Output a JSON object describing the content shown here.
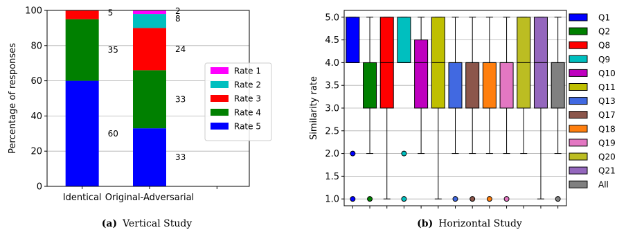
{
  "chart_data": [
    {
      "type": "bar",
      "stacked": true,
      "categories": [
        "Identical",
        "Original-Adversarial"
      ],
      "series": [
        {
          "name": "Rate 5",
          "color": "#0000ff",
          "values": [
            60,
            33
          ]
        },
        {
          "name": "Rate 4",
          "color": "#008000",
          "values": [
            35,
            33
          ]
        },
        {
          "name": "Rate 3",
          "color": "#ff0000",
          "values": [
            5,
            24
          ]
        },
        {
          "name": "Rate 2",
          "color": "#00bfbf",
          "values": [
            0,
            8
          ]
        },
        {
          "name": "Rate 1",
          "color": "#ff00ff",
          "values": [
            0,
            2
          ]
        }
      ],
      "value_labels": [
        {
          "category": "Identical",
          "labels": [
            "60",
            "35",
            "5"
          ]
        },
        {
          "category": "Original-Adversarial",
          "labels": [
            "33",
            "33",
            "24",
            "8",
            "2"
          ]
        }
      ],
      "ylabel": "Percentage of responses",
      "ylim": [
        0,
        100
      ],
      "yticks": [
        "0",
        "20",
        "40",
        "60",
        "80",
        "100"
      ],
      "grid": true,
      "legend_position": "center-right",
      "legend": [
        "Rate 1",
        "Rate 2",
        "Rate 3",
        "Rate 4",
        "Rate 5"
      ],
      "caption_label": "(a)",
      "caption_text": "Vertical Study"
    },
    {
      "type": "box",
      "categories": [
        "Q1",
        "Q2",
        "Q8",
        "Q9",
        "Q10",
        "Q11",
        "Q13",
        "Q17",
        "Q18",
        "Q19",
        "Q20",
        "Q21",
        "All"
      ],
      "boxes": [
        {
          "name": "Q1",
          "color": "#0000ff",
          "whisker_low": 4.0,
          "q1": 4.0,
          "median": 4.0,
          "q3": 5.0,
          "whisker_high": 5.0,
          "outliers": [
            1.0,
            2.0
          ]
        },
        {
          "name": "Q2",
          "color": "#008000",
          "whisker_low": 2.0,
          "q1": 3.0,
          "median": 3.0,
          "q3": 4.0,
          "whisker_high": 5.0,
          "outliers": [
            1.0
          ]
        },
        {
          "name": "Q8",
          "color": "#ff0000",
          "whisker_low": 1.0,
          "q1": 3.0,
          "median": 4.0,
          "q3": 5.0,
          "whisker_high": 5.0,
          "outliers": []
        },
        {
          "name": "Q9",
          "color": "#00bfbf",
          "whisker_low": 4.0,
          "q1": 4.0,
          "median": 4.0,
          "q3": 5.0,
          "whisker_high": 5.0,
          "outliers": [
            1.0,
            2.0
          ]
        },
        {
          "name": "Q10",
          "color": "#bf00bf",
          "whisker_low": 2.0,
          "q1": 3.0,
          "median": 4.0,
          "q3": 4.5,
          "whisker_high": 5.0,
          "outliers": []
        },
        {
          "name": "Q11",
          "color": "#bfbf00",
          "whisker_low": 1.0,
          "q1": 3.0,
          "median": 4.0,
          "q3": 5.0,
          "whisker_high": 5.0,
          "outliers": []
        },
        {
          "name": "Q13",
          "color": "#4169e1",
          "whisker_low": 2.0,
          "q1": 3.0,
          "median": 4.0,
          "q3": 4.0,
          "whisker_high": 5.0,
          "outliers": [
            1.0
          ]
        },
        {
          "name": "Q17",
          "color": "#8c564b",
          "whisker_low": 2.0,
          "q1": 3.0,
          "median": 4.0,
          "q3": 4.0,
          "whisker_high": 5.0,
          "outliers": [
            1.0
          ]
        },
        {
          "name": "Q18",
          "color": "#ff7f0e",
          "whisker_low": 2.0,
          "q1": 3.0,
          "median": 4.0,
          "q3": 4.0,
          "whisker_high": 5.0,
          "outliers": [
            1.0
          ]
        },
        {
          "name": "Q19",
          "color": "#e377c2",
          "whisker_low": 2.0,
          "q1": 3.0,
          "median": 4.0,
          "q3": 4.0,
          "whisker_high": 5.0,
          "outliers": [
            1.0
          ]
        },
        {
          "name": "Q20",
          "color": "#bcbd22",
          "whisker_low": 2.0,
          "q1": 3.0,
          "median": 4.0,
          "q3": 5.0,
          "whisker_high": 5.0,
          "outliers": []
        },
        {
          "name": "Q21",
          "color": "#9467bd",
          "whisker_low": 1.0,
          "q1": 3.0,
          "median": 4.0,
          "q3": 5.0,
          "whisker_high": 5.0,
          "outliers": []
        },
        {
          "name": "All",
          "color": "#808080",
          "whisker_low": 2.0,
          "q1": 3.0,
          "median": 4.0,
          "q3": 4.0,
          "whisker_high": 5.0,
          "outliers": [
            1.0
          ]
        }
      ],
      "ylabel": "Similarity rate",
      "ylim": [
        0.85,
        5.15
      ],
      "yticks": [
        "1.0",
        "1.5",
        "2.0",
        "2.5",
        "3.0",
        "3.5",
        "4.0",
        "4.5",
        "5.0"
      ],
      "grid": true,
      "legend_position": "outside-right",
      "legend": [
        "Q1",
        "Q2",
        "Q8",
        "Q9",
        "Q10",
        "Q11",
        "Q13",
        "Q17",
        "Q18",
        "Q19",
        "Q20",
        "Q21",
        "All"
      ],
      "caption_label": "(b)",
      "caption_text": "Horizontal Study"
    }
  ]
}
